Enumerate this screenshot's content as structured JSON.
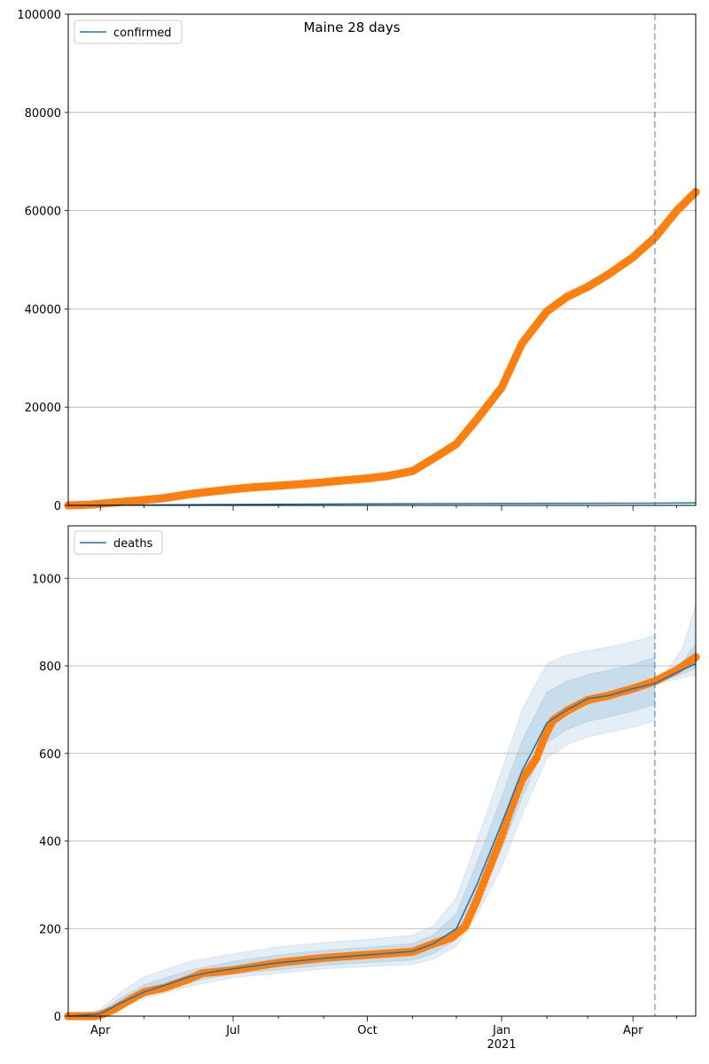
{
  "chart_data": {
    "title": "Maine 28 days",
    "type": "line",
    "x_ticks": {
      "major": [
        "2020-04-01",
        "2020-07-01",
        "2020-10-01",
        "2021-01-01",
        "2021-04-01"
      ],
      "major_labels": [
        "Apr",
        "Jul",
        "Oct",
        "Jan",
        "Apr"
      ],
      "year_label": "2021",
      "minor": [
        "2020-05-01",
        "2020-06-01",
        "2020-08-01",
        "2020-09-01",
        "2020-11-01",
        "2020-12-01",
        "2021-02-01",
        "2021-03-01",
        "2021-05-01"
      ]
    },
    "xlim": [
      "2020-03-10",
      "2021-05-14"
    ],
    "forecast_date": "2021-04-16",
    "colors": {
      "model": "#1f77b4",
      "observed": "#ff7f0e",
      "band": "#1f77b4",
      "grid": "#b0b0b0"
    },
    "panels": [
      {
        "legend": "confirmed",
        "legend_position": "upper-left",
        "ylim": [
          0,
          100000
        ],
        "y_ticks": [
          0,
          20000,
          40000,
          60000,
          80000,
          100000
        ],
        "model": [
          [
            "2020-03-10",
            0
          ],
          [
            "2020-07-01",
            200
          ],
          [
            "2020-10-01",
            300
          ],
          [
            "2021-01-01",
            400
          ],
          [
            "2021-04-16",
            450
          ],
          [
            "2021-05-14",
            500
          ]
        ],
        "observed": [
          [
            "2020-03-10",
            0
          ],
          [
            "2020-03-25",
            150
          ],
          [
            "2020-04-15",
            700
          ],
          [
            "2020-05-01",
            1100
          ],
          [
            "2020-05-15",
            1500
          ],
          [
            "2020-06-01",
            2300
          ],
          [
            "2020-06-15",
            2800
          ],
          [
            "2020-07-01",
            3300
          ],
          [
            "2020-07-15",
            3700
          ],
          [
            "2020-08-01",
            4000
          ],
          [
            "2020-08-15",
            4300
          ],
          [
            "2020-09-01",
            4700
          ],
          [
            "2020-09-15",
            5100
          ],
          [
            "2020-10-01",
            5500
          ],
          [
            "2020-10-15",
            6000
          ],
          [
            "2020-11-01",
            7000
          ],
          [
            "2020-11-15",
            9500
          ],
          [
            "2020-12-01",
            12500
          ],
          [
            "2020-12-15",
            17500
          ],
          [
            "2021-01-01",
            24000
          ],
          [
            "2021-01-15",
            33000
          ],
          [
            "2021-02-01",
            39500
          ],
          [
            "2021-02-15",
            42500
          ],
          [
            "2021-03-01",
            44500
          ],
          [
            "2021-03-15",
            47000
          ],
          [
            "2021-04-01",
            50500
          ],
          [
            "2021-04-16",
            54500
          ],
          [
            "2021-05-01",
            60000
          ],
          [
            "2021-05-14",
            63800
          ]
        ]
      },
      {
        "legend": "deaths",
        "legend_position": "upper-left",
        "ylim": [
          0,
          1120
        ],
        "y_ticks": [
          0,
          200,
          400,
          600,
          800,
          1000
        ],
        "model": [
          [
            "2020-03-10",
            0
          ],
          [
            "2020-04-01",
            5
          ],
          [
            "2020-04-15",
            30
          ],
          [
            "2020-05-01",
            55
          ],
          [
            "2020-05-15",
            70
          ],
          [
            "2020-06-01",
            90
          ],
          [
            "2020-06-15",
            100
          ],
          [
            "2020-07-01",
            108
          ],
          [
            "2020-08-01",
            122
          ],
          [
            "2020-09-01",
            132
          ],
          [
            "2020-10-01",
            140
          ],
          [
            "2020-11-01",
            148
          ],
          [
            "2020-11-15",
            165
          ],
          [
            "2020-12-01",
            200
          ],
          [
            "2020-12-15",
            300
          ],
          [
            "2021-01-01",
            440
          ],
          [
            "2021-01-15",
            560
          ],
          [
            "2021-02-01",
            670
          ],
          [
            "2021-02-15",
            700
          ],
          [
            "2021-03-01",
            725
          ],
          [
            "2021-03-15",
            732
          ],
          [
            "2021-04-01",
            748
          ],
          [
            "2021-04-16",
            760
          ],
          [
            "2021-05-01",
            785
          ],
          [
            "2021-05-14",
            805
          ]
        ],
        "band_outer": {
          "upper": [
            [
              "2020-03-10",
              0
            ],
            [
              "2020-04-01",
              15
            ],
            [
              "2020-04-15",
              55
            ],
            [
              "2020-05-01",
              90
            ],
            [
              "2020-06-01",
              125
            ],
            [
              "2020-07-01",
              142
            ],
            [
              "2020-08-01",
              158
            ],
            [
              "2020-09-01",
              168
            ],
            [
              "2020-10-01",
              175
            ],
            [
              "2020-11-01",
              185
            ],
            [
              "2020-11-15",
              205
            ],
            [
              "2020-12-01",
              270
            ],
            [
              "2020-12-15",
              400
            ],
            [
              "2021-01-01",
              560
            ],
            [
              "2021-01-15",
              700
            ],
            [
              "2021-02-01",
              805
            ],
            [
              "2021-02-15",
              825
            ],
            [
              "2021-03-01",
              835
            ],
            [
              "2021-03-15",
              843
            ],
            [
              "2021-04-01",
              855
            ],
            [
              "2021-04-16",
              870
            ]
          ],
          "lower": [
            [
              "2020-03-10",
              0
            ],
            [
              "2020-04-01",
              0
            ],
            [
              "2020-04-15",
              18
            ],
            [
              "2020-05-01",
              40
            ],
            [
              "2020-06-01",
              68
            ],
            [
              "2020-07-01",
              88
            ],
            [
              "2020-08-01",
              98
            ],
            [
              "2020-09-01",
              108
            ],
            [
              "2020-10-01",
              113
            ],
            [
              "2020-11-01",
              118
            ],
            [
              "2020-11-15",
              130
            ],
            [
              "2020-12-01",
              160
            ],
            [
              "2020-12-15",
              230
            ],
            [
              "2021-01-01",
              340
            ],
            [
              "2021-01-15",
              460
            ],
            [
              "2021-02-01",
              590
            ],
            [
              "2021-02-15",
              620
            ],
            [
              "2021-03-01",
              638
            ],
            [
              "2021-03-15",
              648
            ],
            [
              "2021-04-01",
              660
            ],
            [
              "2021-04-16",
              675
            ]
          ]
        },
        "band_inner": {
          "upper": [
            [
              "2020-03-10",
              0
            ],
            [
              "2020-04-01",
              10
            ],
            [
              "2020-04-15",
              42
            ],
            [
              "2020-05-01",
              72
            ],
            [
              "2020-06-01",
              105
            ],
            [
              "2020-07-01",
              125
            ],
            [
              "2020-08-01",
              140
            ],
            [
              "2020-09-01",
              150
            ],
            [
              "2020-10-01",
              157
            ],
            [
              "2020-11-01",
              166
            ],
            [
              "2020-11-15",
              185
            ],
            [
              "2020-12-01",
              235
            ],
            [
              "2020-12-15",
              350
            ],
            [
              "2021-01-01",
              500
            ],
            [
              "2021-01-15",
              630
            ],
            [
              "2021-02-01",
              740
            ],
            [
              "2021-02-15",
              765
            ],
            [
              "2021-03-01",
              780
            ],
            [
              "2021-03-15",
              790
            ],
            [
              "2021-04-01",
              803
            ],
            [
              "2021-04-16",
              820
            ]
          ],
          "lower": [
            [
              "2020-03-10",
              0
            ],
            [
              "2020-04-01",
              2
            ],
            [
              "2020-04-15",
              24
            ],
            [
              "2020-05-01",
              48
            ],
            [
              "2020-06-01",
              78
            ],
            [
              "2020-07-01",
              96
            ],
            [
              "2020-08-01",
              106
            ],
            [
              "2020-09-01",
              116
            ],
            [
              "2020-10-01",
              122
            ],
            [
              "2020-11-01",
              128
            ],
            [
              "2020-11-15",
              142
            ],
            [
              "2020-12-01",
              175
            ],
            [
              "2020-12-15",
              255
            ],
            [
              "2021-01-01",
              380
            ],
            [
              "2021-01-15",
              500
            ],
            [
              "2021-02-01",
              625
            ],
            [
              "2021-02-15",
              655
            ],
            [
              "2021-03-01",
              673
            ],
            [
              "2021-03-15",
              683
            ],
            [
              "2021-04-01",
              697
            ],
            [
              "2021-04-16",
              712
            ]
          ]
        },
        "band_forecast_outer": {
          "upper": [
            [
              "2021-04-16",
              765
            ],
            [
              "2021-04-25",
              790
            ],
            [
              "2021-05-05",
              840
            ],
            [
              "2021-05-14",
              940
            ]
          ],
          "lower": [
            [
              "2021-04-16",
              755
            ],
            [
              "2021-04-25",
              765
            ],
            [
              "2021-05-05",
              773
            ],
            [
              "2021-05-14",
              780
            ]
          ]
        },
        "band_forecast_inner": {
          "upper": [
            [
              "2021-04-16",
              762
            ],
            [
              "2021-04-25",
              780
            ],
            [
              "2021-05-05",
              810
            ],
            [
              "2021-05-14",
              850
            ]
          ],
          "lower": [
            [
              "2021-04-16",
              758
            ],
            [
              "2021-04-25",
              770
            ],
            [
              "2021-05-05",
              782
            ],
            [
              "2021-05-14",
              795
            ]
          ]
        },
        "observed": [
          [
            "2020-03-10",
            0
          ],
          [
            "2020-03-28",
            0
          ],
          [
            "2020-04-01",
            3
          ],
          [
            "2020-04-10",
            15
          ],
          [
            "2020-04-20",
            35
          ],
          [
            "2020-05-01",
            55
          ],
          [
            "2020-05-15",
            65
          ],
          [
            "2020-06-01",
            85
          ],
          [
            "2020-06-10",
            98
          ],
          [
            "2020-07-01",
            105
          ],
          [
            "2020-08-01",
            122
          ],
          [
            "2020-09-01",
            133
          ],
          [
            "2020-10-01",
            140
          ],
          [
            "2020-11-01",
            147
          ],
          [
            "2020-11-15",
            165
          ],
          [
            "2020-11-28",
            180
          ],
          [
            "2020-12-07",
            205
          ],
          [
            "2020-12-15",
            265
          ],
          [
            "2021-01-01",
            410
          ],
          [
            "2021-01-07",
            470
          ],
          [
            "2021-01-15",
            540
          ],
          [
            "2021-01-25",
            590
          ],
          [
            "2021-01-30",
            635
          ],
          [
            "2021-02-05",
            675
          ],
          [
            "2021-02-15",
            698
          ],
          [
            "2021-03-01",
            722
          ],
          [
            "2021-03-15",
            732
          ],
          [
            "2021-04-01",
            748
          ],
          [
            "2021-04-16",
            765
          ],
          [
            "2021-05-01",
            790
          ],
          [
            "2021-05-14",
            820
          ]
        ]
      }
    ]
  }
}
